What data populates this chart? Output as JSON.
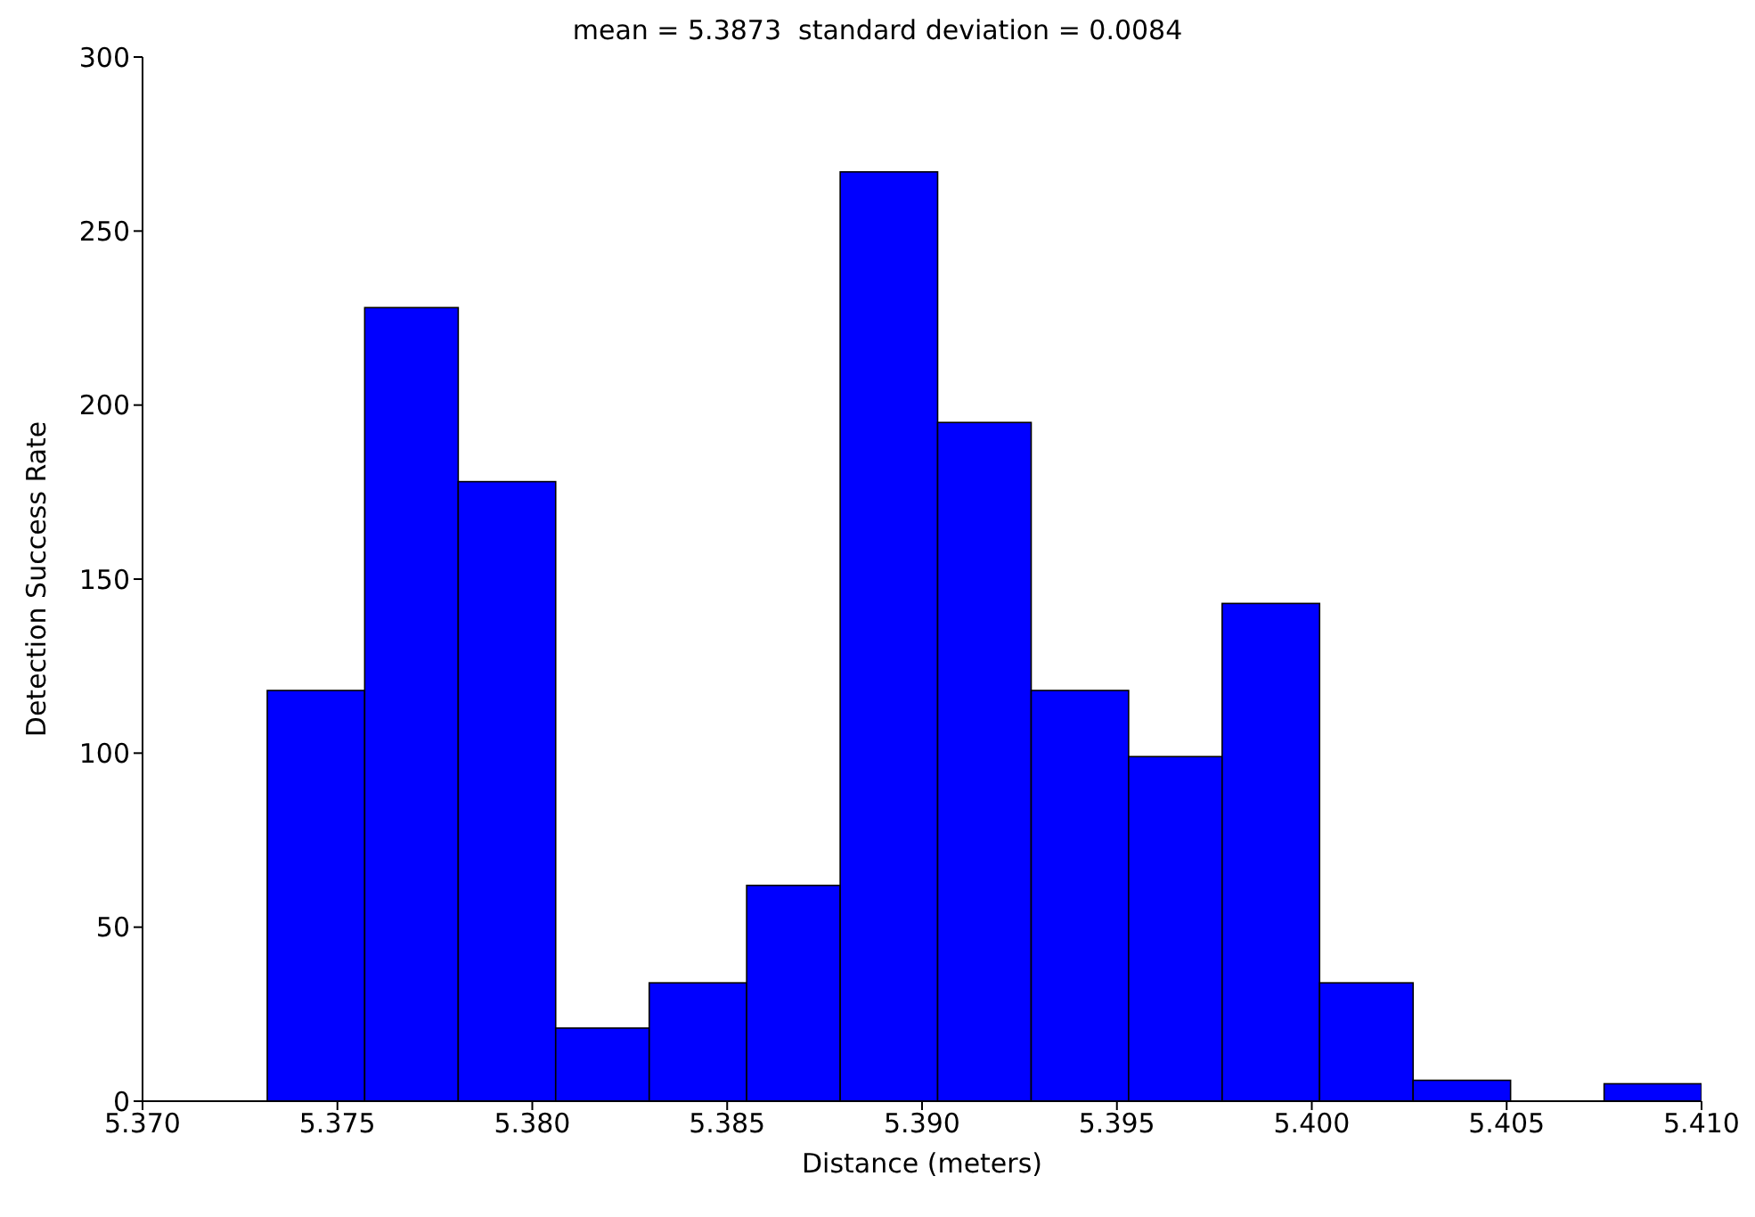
{
  "chart_data": {
    "type": "histogram",
    "title": "mean = 5.3873  standard deviation = 0.0084",
    "xlabel": "Distance (meters)",
    "ylabel": "Detection Success Rate",
    "bins": [
      5.3732,
      5.3757,
      5.3781,
      5.3806,
      5.383,
      5.3855,
      5.3879,
      5.3904,
      5.3928,
      5.3953,
      5.3977,
      5.4002,
      5.4026,
      5.4051,
      5.4075,
      5.41
    ],
    "values": [
      118,
      228,
      178,
      21,
      34,
      62,
      267,
      195,
      118,
      99,
      143,
      34,
      6,
      0,
      5
    ],
    "color": "#0000ff",
    "xlim": [
      5.37,
      5.41
    ],
    "xticks": [
      {
        "value": 5.37,
        "label": "5.370"
      },
      {
        "value": 5.375,
        "label": "5.375"
      },
      {
        "value": 5.38,
        "label": "5.380"
      },
      {
        "value": 5.385,
        "label": "5.385"
      },
      {
        "value": 5.39,
        "label": "5.390"
      },
      {
        "value": 5.395,
        "label": "5.395"
      },
      {
        "value": 5.4,
        "label": "5.400"
      },
      {
        "value": 5.405,
        "label": "5.405"
      },
      {
        "value": 5.41,
        "label": "5.410"
      }
    ],
    "ylim": [
      0,
      300
    ],
    "yticks": [
      0,
      50,
      100,
      150,
      200,
      250,
      300
    ],
    "grid": false,
    "legend": false
  }
}
